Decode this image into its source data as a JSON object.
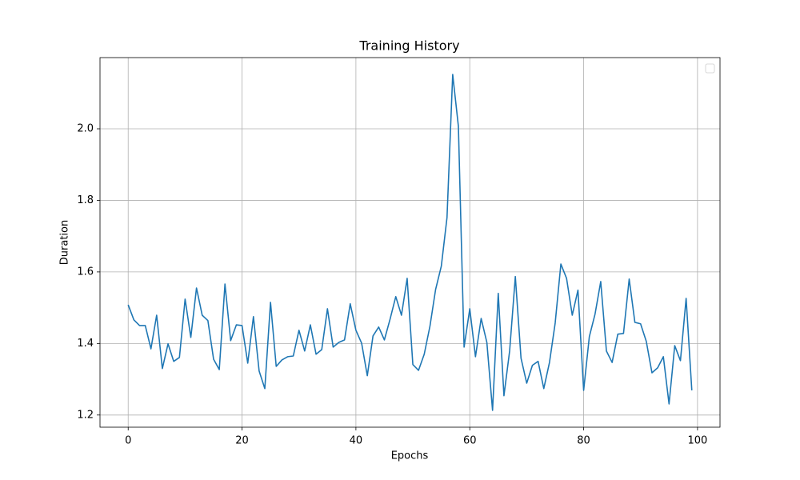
{
  "chart_data": {
    "type": "line",
    "title": "Training History",
    "xlabel": "Epochs",
    "ylabel": "Duration",
    "x": [
      0,
      1,
      2,
      3,
      4,
      5,
      6,
      7,
      8,
      9,
      10,
      11,
      12,
      13,
      14,
      15,
      16,
      17,
      18,
      19,
      20,
      21,
      22,
      23,
      24,
      25,
      26,
      27,
      28,
      29,
      30,
      31,
      32,
      33,
      34,
      35,
      36,
      37,
      38,
      39,
      40,
      41,
      42,
      43,
      44,
      45,
      46,
      47,
      48,
      49,
      50,
      51,
      52,
      53,
      54,
      55,
      56,
      57,
      58,
      59,
      60,
      61,
      62,
      63,
      64,
      65,
      66,
      67,
      68,
      69,
      70,
      71,
      72,
      73,
      74,
      75,
      76,
      77,
      78,
      79,
      80,
      81,
      82,
      83,
      84,
      85,
      86,
      87,
      88,
      89,
      90,
      91,
      92,
      93,
      94,
      95,
      96,
      97,
      98,
      99
    ],
    "values": [
      1.508,
      1.466,
      1.45,
      1.45,
      1.385,
      1.479,
      1.33,
      1.399,
      1.35,
      1.361,
      1.524,
      1.417,
      1.555,
      1.479,
      1.464,
      1.356,
      1.327,
      1.566,
      1.408,
      1.452,
      1.45,
      1.345,
      1.475,
      1.323,
      1.274,
      1.515,
      1.336,
      1.354,
      1.363,
      1.365,
      1.437,
      1.379,
      1.452,
      1.37,
      1.383,
      1.497,
      1.39,
      1.403,
      1.41,
      1.511,
      1.437,
      1.401,
      1.31,
      1.421,
      1.446,
      1.41,
      1.468,
      1.531,
      1.479,
      1.582,
      1.341,
      1.325,
      1.37,
      1.448,
      1.551,
      1.616,
      1.752,
      2.152,
      2.007,
      1.39,
      1.497,
      1.363,
      1.47,
      1.403,
      1.213,
      1.54,
      1.254,
      1.379,
      1.587,
      1.359,
      1.289,
      1.339,
      1.35,
      1.274,
      1.347,
      1.457,
      1.622,
      1.582,
      1.479,
      1.549,
      1.269,
      1.419,
      1.482,
      1.573,
      1.379,
      1.347,
      1.426,
      1.428,
      1.58,
      1.459,
      1.455,
      1.406,
      1.318,
      1.332,
      1.363,
      1.231,
      1.394,
      1.352,
      1.526,
      1.269
    ],
    "color": "#1f77b4",
    "xlim": [
      -4.95,
      103.95
    ],
    "ylim": [
      1.166,
      2.199
    ],
    "xticks": [
      0,
      20,
      40,
      60,
      80,
      100
    ],
    "yticks": [
      1.2,
      1.4,
      1.6,
      1.8,
      {
        "value": 2,
        "label": "2.0"
      }
    ],
    "grid": true,
    "legend": "upper right"
  }
}
